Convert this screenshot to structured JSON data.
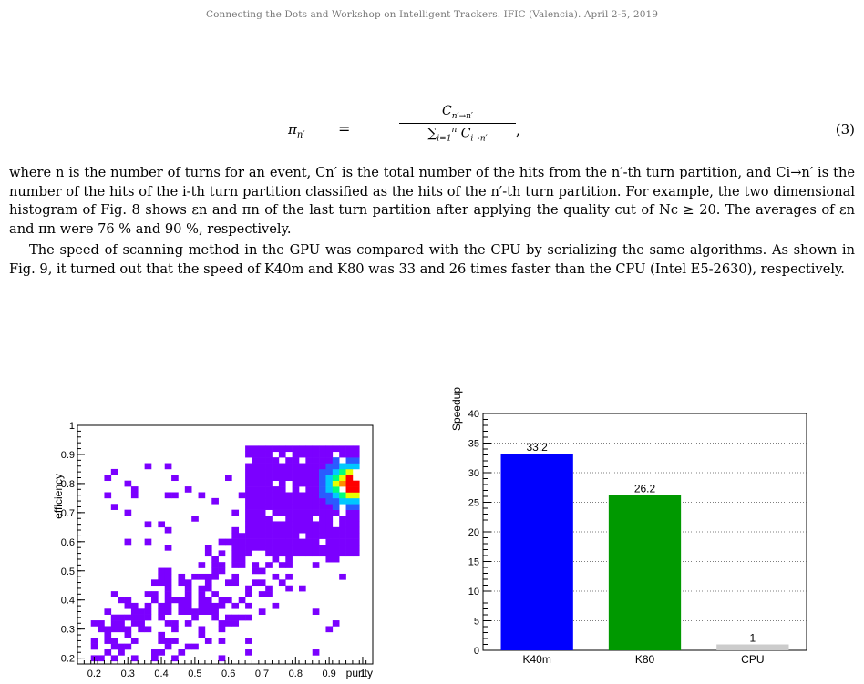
{
  "header": {
    "text": "Connecting the Dots and Workshop on Intelligent Trackers. IFIC (Valencia). April 2-5, 2019"
  },
  "equation": {
    "lhs": "π",
    "lhs_sub": "n′",
    "equals": "=",
    "num_main": "C",
    "num_sub": "n′→n′",
    "den_sum": "∑",
    "den_sum_sub": "i=1",
    "den_sum_sup": "n",
    "den_main": "C",
    "den_sub": "i→n′",
    "comma": ",",
    "number": "(3)"
  },
  "paragraphs": [
    "where n is the number of turns for an event, Cn′ is the total number of the hits from the n′-th turn partition, and Ci→n′ is the number of the hits of the i-th turn partition classified as the hits of the n′-th turn partition. For example, the two dimensional histogram of Fig. 8 shows εn and πn of the last turn partition after applying the quality cut of Nc ≥ 20. The averages of εn and πn were 76 % and 90 %, respectively.",
    "The speed of scanning method in the GPU was compared with the CPU by serializing the same algorithms. As shown in Fig. 9, it turned out that the speed of K40m and K80 was 33 and 26 times faster than the CPU (Intel E5-2630), respectively."
  ],
  "chart_data": [
    {
      "type": "heatmap",
      "xlabel": "purity",
      "ylabel": "efficiency",
      "xlim": [
        0.15,
        1.03
      ],
      "ylim": [
        0.18,
        1.0
      ],
      "xticks": [
        "0.2",
        "0.3",
        "0.4",
        "0.5",
        "0.6",
        "0.7",
        "0.8",
        "0.9",
        "1"
      ],
      "yticks": [
        "0.2",
        "0.3",
        "0.4",
        "0.5",
        "0.6",
        "0.7",
        "0.8",
        "0.9",
        "1"
      ],
      "palette": {
        "low": "#7b00ff",
        "mid": "#00c8ff",
        "high": "#ff0000"
      },
      "hot_spot": {
        "purity": 0.96,
        "efficiency": 0.79
      }
    },
    {
      "type": "bar",
      "categories": [
        "K40m",
        "K80",
        "CPU"
      ],
      "values": [
        33.2,
        26.2,
        1
      ],
      "value_labels": [
        "33.2",
        "26.2",
        "1"
      ],
      "colors": [
        "#0000ff",
        "#009900",
        "#cccccc"
      ],
      "ylabel": "Speedup",
      "ylim": [
        0,
        40
      ],
      "yticks": [
        "0",
        "5",
        "10",
        "15",
        "20",
        "25",
        "30",
        "35",
        "40"
      ],
      "grid": true
    }
  ]
}
